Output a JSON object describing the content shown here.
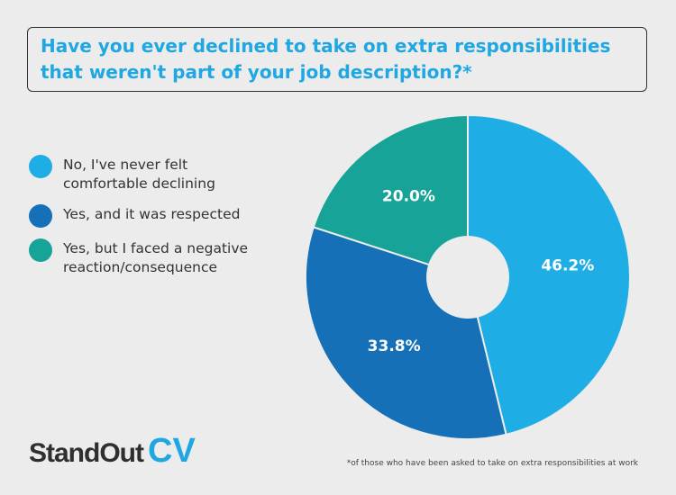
{
  "title": "Have you ever declined to take on extra responsibilities that weren't part of your job description?*",
  "legend": [
    {
      "label": "No, I've never felt\ncomfortable declining",
      "color": "#1fade6"
    },
    {
      "label": "Yes, and it was respected",
      "color": "#1570b8"
    },
    {
      "label": "Yes, but I faced a negative\nreaction/consequence",
      "color": "#17a398"
    }
  ],
  "chart_data": {
    "type": "pie",
    "donut": true,
    "title": "Have you ever declined to take on extra responsibilities that weren't part of your job description?*",
    "legend_position": "left",
    "slices": [
      {
        "label": "No, I've never felt comfortable declining",
        "value": 46.2,
        "display": "46.2%",
        "color": "#1fade6"
      },
      {
        "label": "Yes, and it was respected",
        "value": 33.8,
        "display": "33.8%",
        "color": "#1570b8"
      },
      {
        "label": "Yes, but I faced a negative reaction/consequence",
        "value": 20.0,
        "display": "20.0%",
        "color": "#17a398"
      }
    ]
  },
  "brand": {
    "name": "StandOut",
    "suffix": "CV"
  },
  "footnote": "*of those who have been asked to take on extra responsibilities at work"
}
